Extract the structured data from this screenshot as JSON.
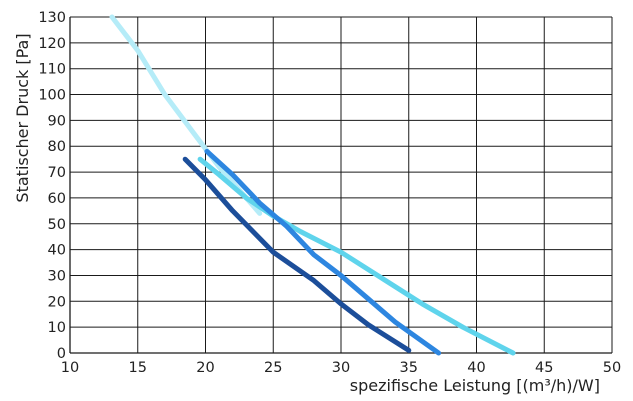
{
  "chart_data": {
    "type": "line",
    "title": "",
    "xlabel": "spezifische Leistung [(m³/h)/W]",
    "ylabel": "Statischer Druck [Pa]",
    "xlim": [
      10,
      50
    ],
    "ylim": [
      0,
      130
    ],
    "xticks": [
      10,
      15,
      20,
      25,
      30,
      35,
      40,
      45,
      50
    ],
    "yticks": [
      0,
      10,
      20,
      30,
      40,
      50,
      60,
      70,
      80,
      90,
      100,
      110,
      120,
      130
    ],
    "grid": true,
    "legend": "none",
    "series": [
      {
        "color": "#b5ecf8",
        "points": [
          [
            13.1,
            130
          ],
          [
            15,
            117
          ],
          [
            17,
            100
          ],
          [
            19,
            86
          ],
          [
            21,
            72
          ],
          [
            23,
            60
          ],
          [
            24,
            54
          ]
        ]
      },
      {
        "color": "#5fd4ec",
        "points": [
          [
            19.6,
            75
          ],
          [
            21,
            69
          ],
          [
            23,
            60
          ],
          [
            25,
            53
          ],
          [
            27,
            47
          ],
          [
            30,
            39
          ],
          [
            33,
            29
          ],
          [
            36,
            19
          ],
          [
            39,
            10
          ],
          [
            42.7,
            0
          ]
        ]
      },
      {
        "color": "#2d86e0",
        "points": [
          [
            20.1,
            78
          ],
          [
            22,
            69
          ],
          [
            24,
            58
          ],
          [
            26,
            49
          ],
          [
            28,
            38
          ],
          [
            30,
            30
          ],
          [
            32,
            21
          ],
          [
            34,
            12
          ],
          [
            37.2,
            0
          ]
        ]
      },
      {
        "color": "#1c4e9a",
        "points": [
          [
            18.5,
            75
          ],
          [
            20,
            67
          ],
          [
            22,
            55
          ],
          [
            25,
            39
          ],
          [
            28,
            28
          ],
          [
            30,
            19
          ],
          [
            32,
            11
          ],
          [
            35,
            1
          ]
        ]
      }
    ]
  }
}
